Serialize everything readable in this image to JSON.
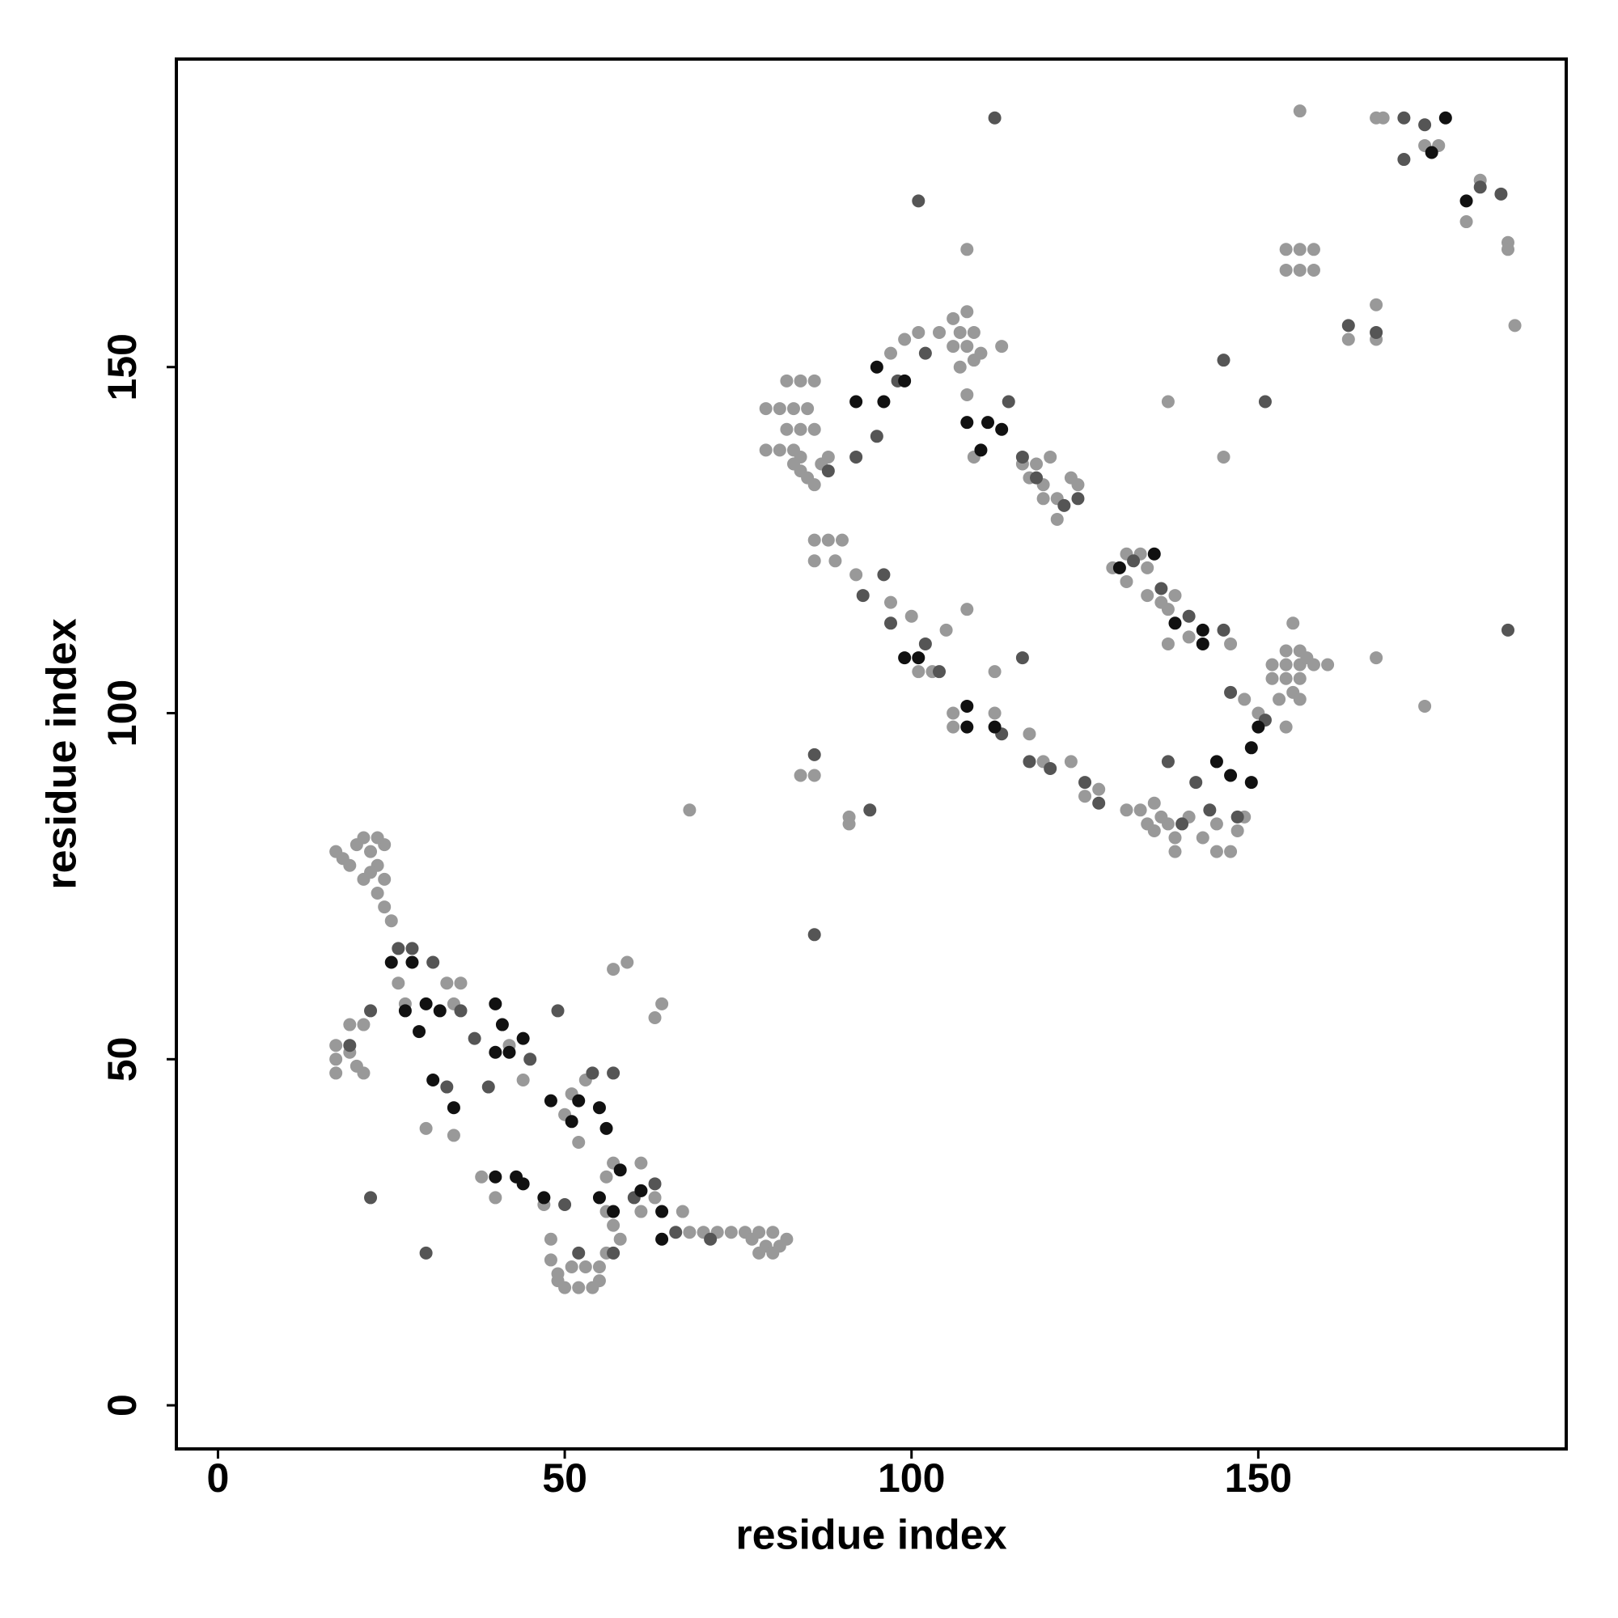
{
  "chart_data": {
    "type": "scatter",
    "x_label": "residue index",
    "y_label": "residue index",
    "xlim": [
      -6,
      194.4
    ],
    "ylim": [
      -6.3,
      194.5
    ],
    "xticks": [
      0,
      50,
      100,
      150
    ],
    "yticks": [
      0,
      50,
      100,
      150
    ],
    "series": [
      {
        "color": "#999999",
        "x": [
          156,
          167,
          168,
          174,
          176,
          180,
          182,
          186,
          186,
          187,
          108,
          154,
          156,
          158,
          154,
          156,
          158,
          167,
          163,
          167,
          137,
          145,
          112,
          174,
          167,
          68,
          84,
          86,
          91,
          91,
          79,
          81,
          83,
          85,
          79,
          81,
          83,
          82,
          84,
          86,
          82,
          84,
          86,
          83,
          84,
          85,
          86,
          87,
          88,
          84,
          101,
          104,
          107,
          109,
          106,
          108,
          110,
          106,
          108,
          109,
          107,
          113,
          99,
          97,
          108,
          109,
          116,
          117,
          119,
          119,
          121,
          121,
          123,
          124,
          120,
          118,
          86,
          88,
          86,
          90,
          89,
          92,
          97,
          100,
          105,
          103,
          101,
          108,
          106,
          106,
          112,
          117,
          119,
          123,
          125,
          127,
          129,
          131,
          133,
          134,
          131,
          134,
          136,
          137,
          138,
          137,
          140,
          146,
          152,
          154,
          156,
          158,
          152,
          154,
          156,
          154,
          156,
          157,
          160,
          155,
          153,
          156,
          155,
          154,
          131,
          133,
          134,
          135,
          137,
          138,
          138,
          136,
          144,
          142,
          144,
          146,
          140,
          147,
          148,
          135,
          150,
          148,
          17,
          17,
          17,
          19,
          20,
          21,
          19,
          21,
          17,
          18,
          19,
          20,
          21,
          22,
          23,
          24,
          23,
          24,
          25,
          22,
          21,
          24,
          23,
          26,
          27,
          33,
          35,
          34,
          30,
          34,
          38,
          40,
          47,
          48,
          48,
          49,
          50,
          52,
          54,
          49,
          51,
          53,
          55,
          55,
          56,
          58,
          57,
          56,
          56,
          57,
          61,
          61,
          61,
          63,
          67,
          68,
          70,
          72,
          74,
          76,
          78,
          80,
          82,
          77,
          79,
          81,
          80,
          78,
          53,
          51,
          50,
          52,
          57,
          59,
          63,
          64,
          44,
          42
        ],
        "y": [
          187,
          186,
          186,
          182,
          182,
          171,
          177,
          168,
          167,
          156,
          167,
          167,
          167,
          167,
          164,
          164,
          164,
          159,
          154,
          154,
          145,
          137,
          106,
          101,
          108,
          86,
          91,
          91,
          85,
          84,
          144,
          144,
          144,
          144,
          138,
          138,
          138,
          141,
          141,
          141,
          148,
          148,
          148,
          136,
          135,
          134,
          133,
          136,
          137,
          137,
          155,
          155,
          155,
          155,
          153,
          153,
          152,
          157,
          158,
          151,
          150,
          153,
          154,
          152,
          146,
          137,
          136,
          134,
          133,
          131,
          131,
          128,
          134,
          133,
          137,
          136,
          125,
          125,
          122,
          125,
          122,
          120,
          116,
          114,
          112,
          106,
          106,
          115,
          100,
          98,
          100,
          97,
          93,
          93,
          88,
          89,
          121,
          123,
          123,
          121,
          119,
          117,
          116,
          115,
          117,
          110,
          111,
          110,
          107,
          107,
          107,
          107,
          105,
          105,
          105,
          109,
          109,
          108,
          107,
          103,
          102,
          102,
          113,
          98,
          86,
          86,
          84,
          83,
          84,
          82,
          80,
          85,
          84,
          82,
          80,
          80,
          85,
          83,
          85,
          87,
          100,
          102,
          52,
          50,
          48,
          51,
          49,
          48,
          55,
          55,
          80,
          79,
          78,
          81,
          82,
          80,
          78,
          76,
          74,
          72,
          70,
          77,
          76,
          81,
          82,
          61,
          58,
          61,
          61,
          58,
          40,
          39,
          33,
          30,
          29,
          24,
          21,
          19,
          17,
          17,
          17,
          18,
          20,
          20,
          20,
          18,
          22,
          24,
          26,
          28,
          33,
          35,
          35,
          31,
          28,
          30,
          28,
          25,
          25,
          25,
          25,
          25,
          25,
          25,
          24,
          24,
          23,
          23,
          22,
          22,
          47,
          45,
          42,
          38,
          63,
          64,
          56,
          58,
          47,
          52
        ]
      },
      {
        "color": "#555555",
        "x": [
          112,
          171,
          174,
          171,
          182,
          185,
          101,
          145,
          151,
          167,
          163,
          186,
          116,
          94,
          86,
          86,
          22,
          30,
          22,
          19,
          26,
          28,
          31,
          35,
          33,
          39,
          37,
          45,
          49,
          54,
          57,
          50,
          52,
          57,
          60,
          63,
          66,
          71,
          88,
          92,
          95,
          98,
          102,
          114,
          116,
          118,
          122,
          124,
          96,
          93,
          97,
          102,
          104,
          113,
          117,
          120,
          127,
          125,
          132,
          136,
          140,
          145,
          146,
          137,
          141,
          139,
          143,
          147,
          151
        ],
        "y": [
          186,
          186,
          185,
          180,
          176,
          175,
          174,
          151,
          145,
          155,
          156,
          112,
          108,
          86,
          94,
          68,
          30,
          22,
          57,
          52,
          66,
          66,
          64,
          57,
          46,
          46,
          53,
          50,
          57,
          48,
          48,
          29,
          22,
          22,
          30,
          32,
          25,
          24,
          135,
          137,
          140,
          148,
          152,
          145,
          137,
          134,
          130,
          131,
          120,
          117,
          113,
          110,
          106,
          97,
          93,
          92,
          87,
          90,
          122,
          118,
          114,
          112,
          103,
          93,
          90,
          84,
          86,
          85,
          99
        ]
      },
      {
        "color": "#111111",
        "x": [
          30,
          29,
          32,
          34,
          31,
          28,
          40,
          41,
          44,
          42,
          40,
          48,
          51,
          52,
          55,
          56,
          47,
          43,
          44,
          40,
          57,
          58,
          61,
          64,
          64,
          55,
          25,
          27,
          177,
          175,
          180,
          95,
          92,
          96,
          99,
          108,
          111,
          113,
          110,
          99,
          101,
          108,
          108,
          112,
          142,
          142,
          146,
          149,
          149,
          150,
          144,
          130,
          135,
          138
        ],
        "y": [
          58,
          54,
          57,
          43,
          47,
          64,
          58,
          55,
          53,
          51,
          51,
          44,
          41,
          44,
          43,
          40,
          30,
          33,
          32,
          33,
          28,
          34,
          31,
          28,
          24,
          30,
          64,
          57,
          186,
          181,
          174,
          150,
          145,
          145,
          148,
          142,
          142,
          141,
          138,
          108,
          108,
          101,
          98,
          98,
          112,
          110,
          91,
          95,
          90,
          98,
          93,
          121,
          123,
          113
        ]
      }
    ]
  }
}
